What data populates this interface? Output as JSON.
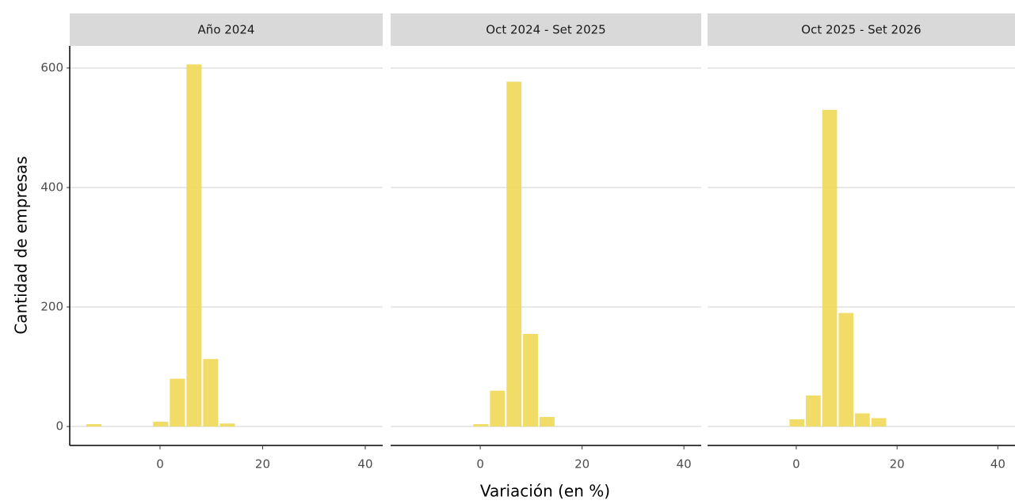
{
  "chart_data": [
    {
      "type": "histogram",
      "title": "Año 2024",
      "xlabel": "Variación (en %)",
      "ylabel": "Cantidad de empresas",
      "bins": [
        -14.5,
        -11.25,
        -8,
        -4.75,
        -1.5,
        1.75,
        5,
        8.25,
        11.5,
        14.75,
        18,
        21.25,
        24.5,
        27.75,
        31,
        34.25,
        37.5,
        40.75
      ],
      "counts": [
        4,
        0,
        0,
        0,
        8,
        80,
        606,
        113,
        5,
        0,
        0,
        0,
        0,
        0,
        0,
        0,
        0
      ],
      "color": "#f0d858",
      "xlim": [
        -17.6,
        43.4
      ],
      "xticks": [
        0,
        20,
        40
      ],
      "ylim": [
        -37,
        637
      ],
      "yticks": [
        0,
        200,
        400,
        600
      ],
      "grid": true
    },
    {
      "type": "histogram",
      "title": "Oct 2024 - Set 2025",
      "bins": [
        -14.5,
        -11.25,
        -8,
        -4.75,
        -1.5,
        1.75,
        5,
        8.25,
        11.5,
        14.75,
        18,
        21.25,
        24.5,
        27.75,
        31,
        34.25,
        37.5,
        40.75
      ],
      "counts": [
        0,
        0,
        0,
        0,
        4,
        60,
        577,
        155,
        16,
        0,
        0,
        0,
        0,
        0,
        0,
        0,
        0
      ],
      "color": "#f0d858",
      "xlim": [
        -17.6,
        43.4
      ],
      "xticks": [
        0,
        20,
        40
      ],
      "ylim": [
        -37,
        637
      ],
      "yticks": [
        0,
        200,
        400,
        600
      ],
      "grid": true
    },
    {
      "type": "histogram",
      "title": "Oct 2025 - Set 2026",
      "bins": [
        -14.5,
        -11.25,
        -8,
        -4.75,
        -1.5,
        1.75,
        5,
        8.25,
        11.5,
        14.75,
        18,
        21.25,
        24.5,
        27.75,
        31,
        34.25,
        37.5,
        40.75
      ],
      "counts": [
        0,
        0,
        0,
        0,
        12,
        52,
        530,
        190,
        22,
        14,
        0,
        0,
        0,
        0,
        0,
        0,
        0
      ],
      "color": "#f0d858",
      "xlim": [
        -17.6,
        43.4
      ],
      "xticks": [
        0,
        20,
        40
      ],
      "ylim": [
        -37,
        637
      ],
      "yticks": [
        0,
        200,
        400,
        600
      ],
      "grid": true
    }
  ]
}
